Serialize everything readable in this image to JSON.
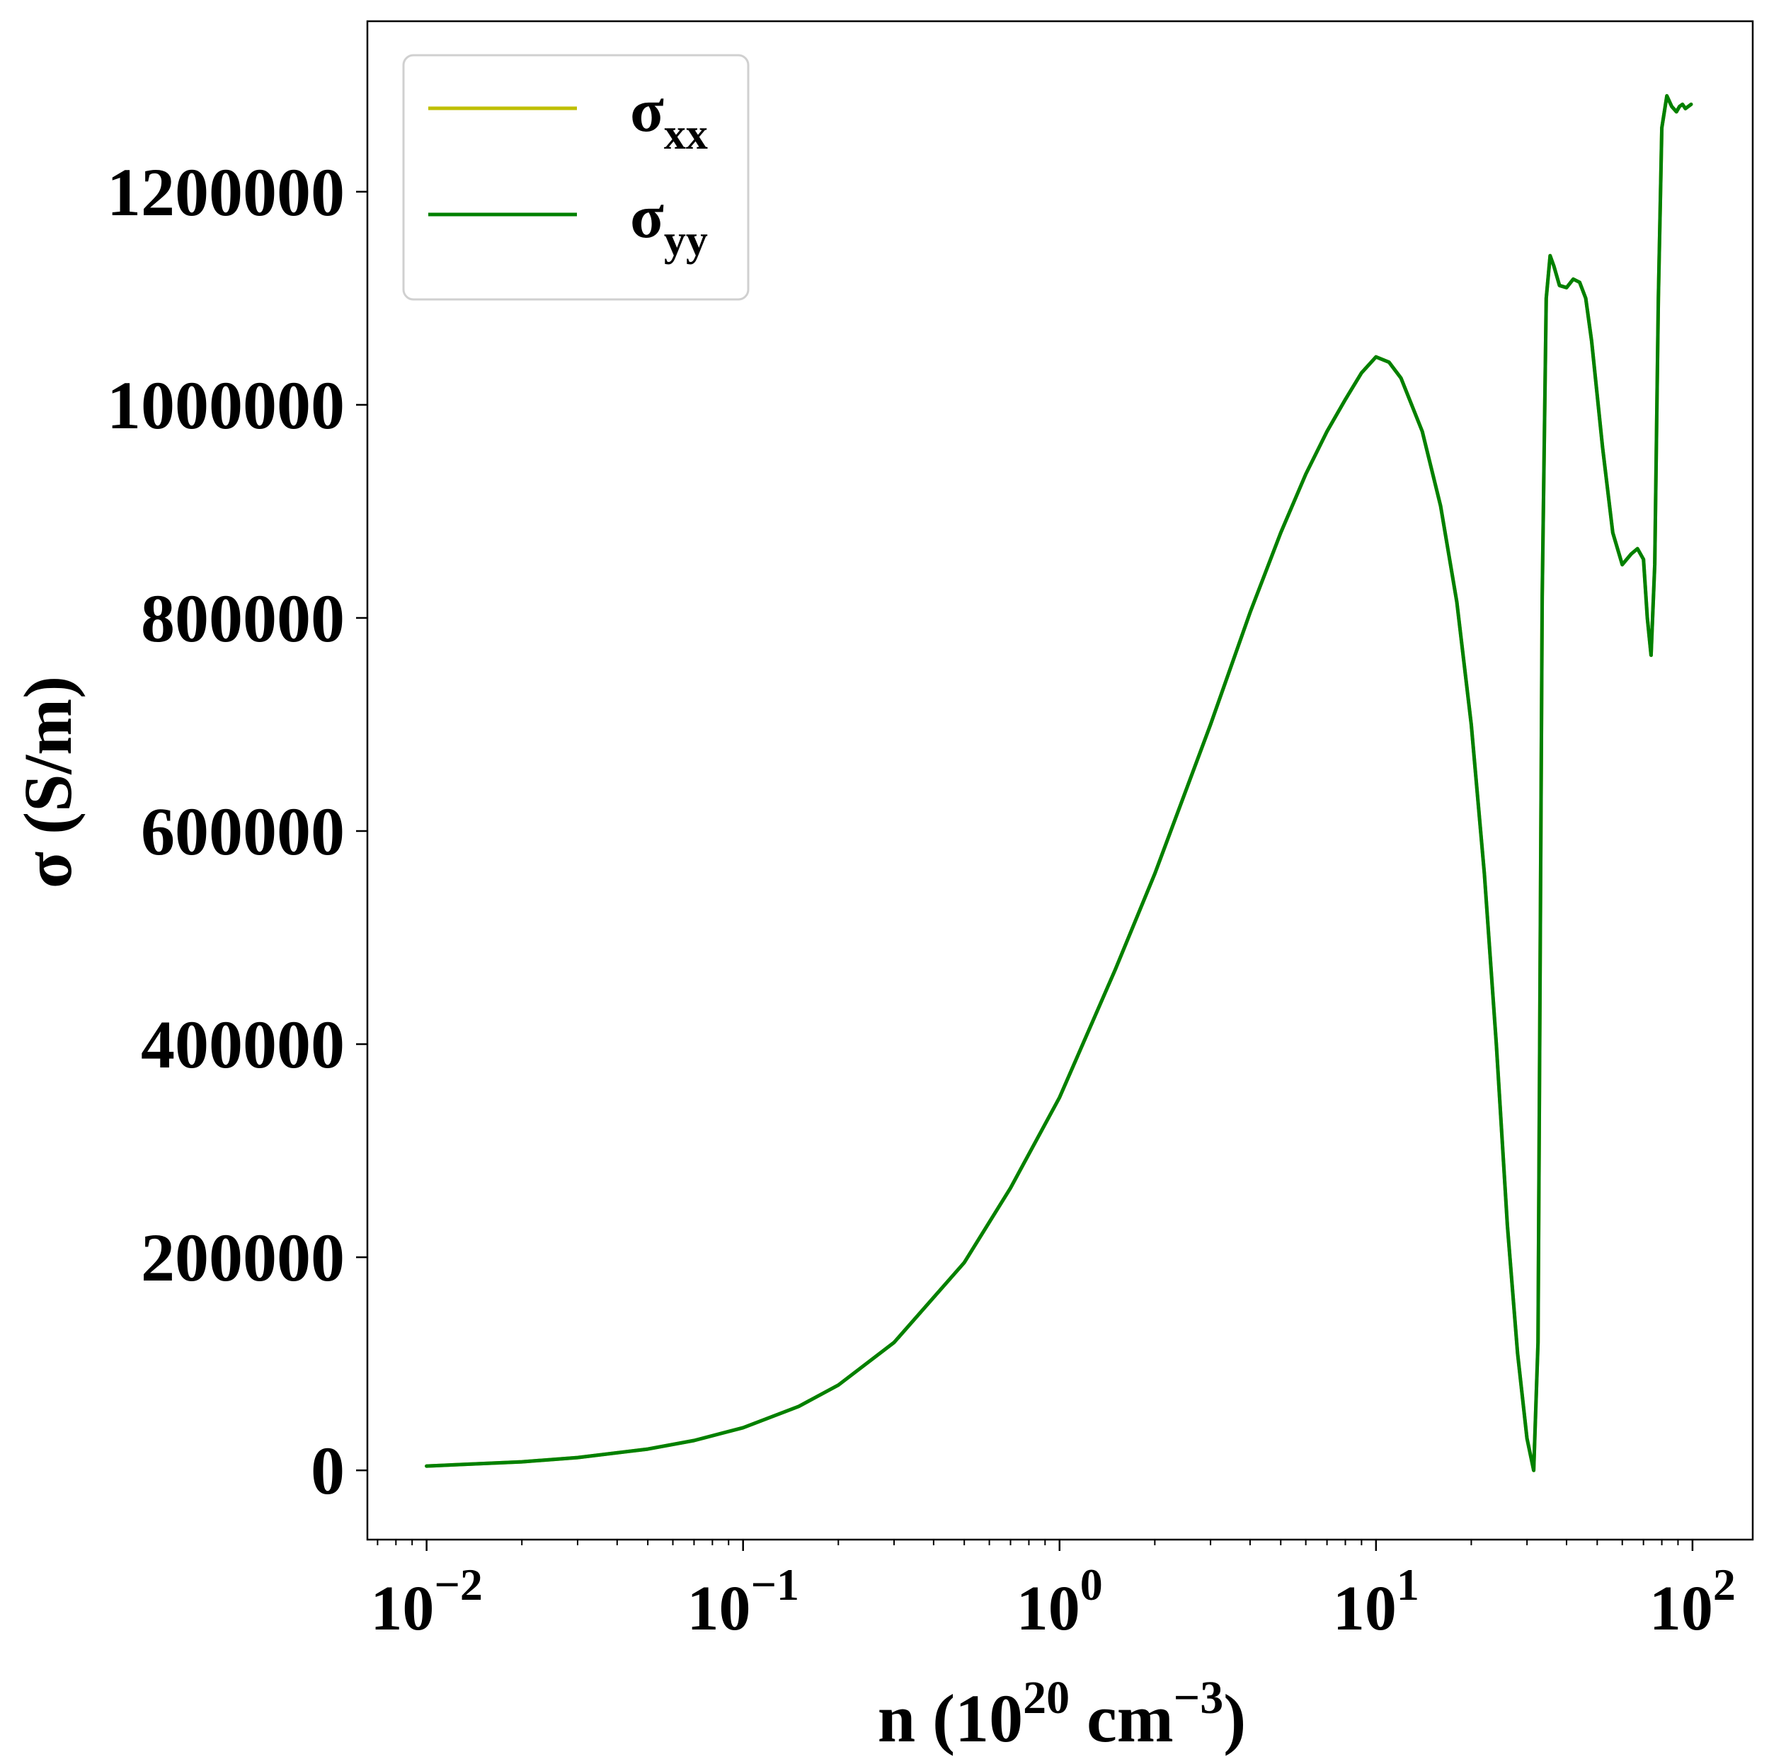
{
  "chart_data": {
    "type": "line",
    "title": "",
    "xlabel": {
      "base": "n (10",
      "exp1": "20",
      "mid": " cm",
      "exp2": "−3",
      "tail": ")"
    },
    "ylabel": "σ (S/m)",
    "xscale": "log",
    "xlim": [
      0.0065,
      155
    ],
    "ylim": [
      -65000,
      1360000
    ],
    "grid": false,
    "legend": {
      "placement": "top-left"
    },
    "x_ticks": [
      {
        "value": 0.01,
        "base": "10",
        "exp": "−2"
      },
      {
        "value": 0.1,
        "base": "10",
        "exp": "−1"
      },
      {
        "value": 1,
        "base": "10",
        "exp": "0"
      },
      {
        "value": 10,
        "base": "10",
        "exp": "1"
      },
      {
        "value": 100,
        "base": "10",
        "exp": "2"
      }
    ],
    "y_ticks": [
      {
        "value": 0,
        "label": "0"
      },
      {
        "value": 200000,
        "label": "200000"
      },
      {
        "value": 400000,
        "label": "400000"
      },
      {
        "value": 600000,
        "label": "600000"
      },
      {
        "value": 800000,
        "label": "800000"
      },
      {
        "value": 1000000,
        "label": "1000000"
      },
      {
        "value": 1200000,
        "label": "1200000"
      }
    ],
    "series": [
      {
        "name": "σ",
        "sub": "xx",
        "color": "#bfbf00",
        "x": [
          0.01,
          0.02,
          0.03,
          0.05,
          0.07,
          0.1,
          0.15,
          0.2,
          0.3,
          0.5,
          0.7,
          1.0,
          1.5,
          2.0,
          3.0,
          4.0,
          5.0,
          6.0,
          7.0,
          8.0,
          9.0,
          10.0,
          11.0,
          12.0,
          14.0,
          16.0,
          18.0,
          20.0,
          22.0,
          24.0,
          26.0,
          28.0,
          30.0,
          31.5,
          32.5,
          33.5,
          34.5,
          35.5,
          36.5,
          38.0,
          40.0,
          42.0,
          44.0,
          46.0,
          48.0,
          52.0,
          56.0,
          60.0,
          64.0,
          67.0,
          70.0,
          72.0,
          74.0,
          76.0,
          78.0,
          80.0,
          83.0,
          86.0,
          89.0,
          91.0,
          93.0,
          95.0,
          97.0,
          99.0
        ],
        "values": [
          4000,
          8000,
          12000,
          20000,
          28000,
          40000,
          60000,
          80000,
          120000,
          195000,
          265000,
          350000,
          470000,
          560000,
          700000,
          805000,
          880000,
          935000,
          975000,
          1005000,
          1030000,
          1045000,
          1040000,
          1025000,
          975000,
          905000,
          815000,
          700000,
          560000,
          400000,
          230000,
          110000,
          30000,
          0,
          120000,
          820000,
          1100000,
          1140000,
          1130000,
          1112000,
          1110000,
          1118000,
          1115000,
          1100000,
          1060000,
          960000,
          880000,
          850000,
          860000,
          865000,
          855000,
          800000,
          765000,
          850000,
          1100000,
          1260000,
          1290000,
          1280000,
          1275000,
          1280000,
          1282000,
          1278000,
          1280000,
          1282000
        ]
      },
      {
        "name": "σ",
        "sub": "yy",
        "color": "#008000",
        "x": [
          0.01,
          0.02,
          0.03,
          0.05,
          0.07,
          0.1,
          0.15,
          0.2,
          0.3,
          0.5,
          0.7,
          1.0,
          1.5,
          2.0,
          3.0,
          4.0,
          5.0,
          6.0,
          7.0,
          8.0,
          9.0,
          10.0,
          11.0,
          12.0,
          14.0,
          16.0,
          18.0,
          20.0,
          22.0,
          24.0,
          26.0,
          28.0,
          30.0,
          31.5,
          32.5,
          33.5,
          34.5,
          35.5,
          36.5,
          38.0,
          40.0,
          42.0,
          44.0,
          46.0,
          48.0,
          52.0,
          56.0,
          60.0,
          64.0,
          67.0,
          70.0,
          72.0,
          74.0,
          76.0,
          78.0,
          80.0,
          83.0,
          86.0,
          89.0,
          91.0,
          93.0,
          95.0,
          97.0,
          99.0
        ],
        "values": [
          4000,
          8000,
          12000,
          20000,
          28000,
          40000,
          60000,
          80000,
          120000,
          195000,
          265000,
          350000,
          470000,
          560000,
          700000,
          805000,
          880000,
          935000,
          975000,
          1005000,
          1030000,
          1045000,
          1040000,
          1025000,
          975000,
          905000,
          815000,
          700000,
          560000,
          400000,
          230000,
          110000,
          30000,
          0,
          120000,
          820000,
          1100000,
          1140000,
          1130000,
          1112000,
          1110000,
          1118000,
          1115000,
          1100000,
          1060000,
          960000,
          880000,
          850000,
          860000,
          865000,
          855000,
          800000,
          765000,
          850000,
          1100000,
          1260000,
          1290000,
          1280000,
          1275000,
          1280000,
          1282000,
          1278000,
          1280000,
          1282000
        ]
      }
    ]
  }
}
